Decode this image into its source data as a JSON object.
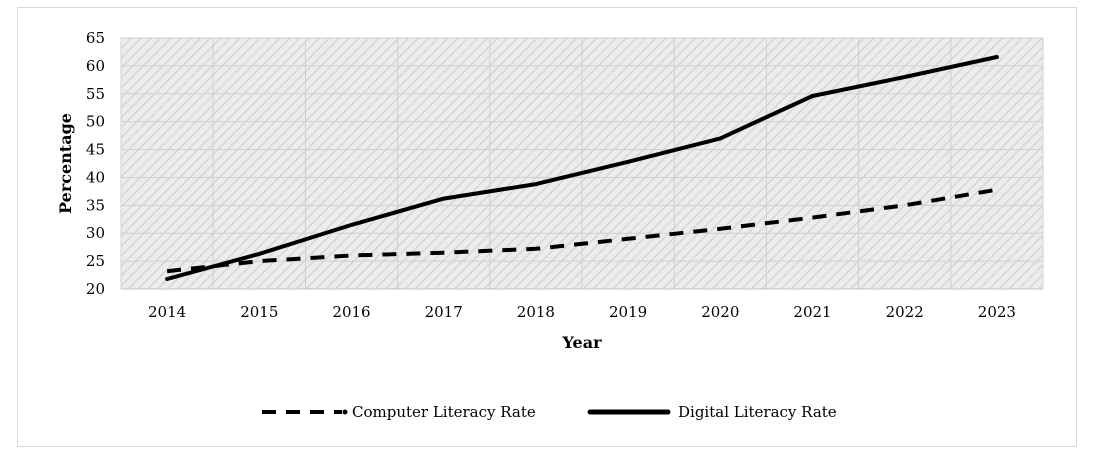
{
  "chart_data": {
    "type": "line",
    "title": "",
    "xlabel": "Year",
    "ylabel": "Percentage",
    "categories": [
      "2014",
      "2015",
      "2016",
      "2017",
      "2018",
      "2019",
      "2020",
      "2021",
      "2022",
      "2023"
    ],
    "ylim": [
      20,
      65
    ],
    "yticks": [
      20,
      25,
      30,
      35,
      40,
      45,
      50,
      55,
      60,
      65
    ],
    "grid": true,
    "legend": "bottom",
    "series": [
      {
        "name": "Computer Literacy Rate",
        "style": "dashed",
        "color": "#000000",
        "values": [
          23.2,
          25.0,
          26.0,
          26.5,
          27.2,
          29.0,
          30.8,
          32.8,
          35.0,
          37.8
        ]
      },
      {
        "name": "Digital Literacy Rate",
        "style": "solid",
        "color": "#000000",
        "values": [
          21.8,
          26.3,
          31.5,
          36.2,
          38.8,
          42.8,
          47.0,
          54.6,
          58.0,
          61.6
        ]
      }
    ]
  }
}
